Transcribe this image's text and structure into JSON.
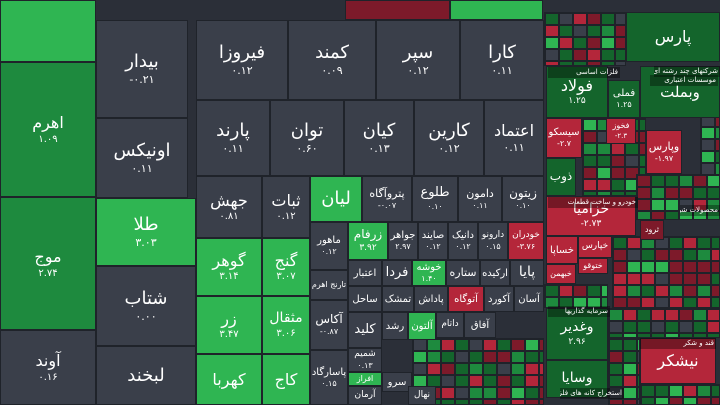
{
  "chart_data": {
    "type": "heatmap",
    "title": "",
    "colors": {
      "gray": "#3a3f4a",
      "green_bright": "#2fb552",
      "green": "#1e8a3e",
      "green_dark": "#14652c",
      "red": "#b4263a",
      "red_dark": "#7d1a2a",
      "border": "#1f232a"
    },
    "tiles": [
      {
        "name": "",
        "value": "",
        "color": "green_bright"
      },
      {
        "name": "",
        "value": "",
        "color": "red_dark"
      },
      {
        "name": "",
        "value": "",
        "color": "green_bright"
      },
      {
        "name": "اهرم",
        "value": "۱.۰۹",
        "color": "green"
      },
      {
        "name": "موج",
        "value": "۲.۷۴",
        "color": "green"
      },
      {
        "name": "آوند",
        "value": "۰.۱۶",
        "color": "gray"
      },
      {
        "name": "بیدار",
        "value": "-۰.۲۱",
        "color": "gray"
      },
      {
        "name": "اونیکس",
        "value": "۰.۱۱",
        "color": "gray"
      },
      {
        "name": "طلا",
        "value": "۳.۰۳",
        "color": "green_bright"
      },
      {
        "name": "شتاب",
        "value": "۰.۰۰",
        "color": "gray"
      },
      {
        "name": "لبخند",
        "value": "",
        "color": "gray"
      },
      {
        "name": "فیروزا",
        "value": "۰.۱۲",
        "color": "gray"
      },
      {
        "name": "کمند",
        "value": "۰.۰۹",
        "color": "gray"
      },
      {
        "name": "سپر",
        "value": "۰.۱۲",
        "color": "gray"
      },
      {
        "name": "کارا",
        "value": "۰.۱۱",
        "color": "gray"
      },
      {
        "name": "پارند",
        "value": "۰.۱۱",
        "color": "gray"
      },
      {
        "name": "توان",
        "value": "۰.۶۰",
        "color": "gray"
      },
      {
        "name": "کیان",
        "value": "۰.۱۳",
        "color": "gray"
      },
      {
        "name": "کارین",
        "value": "۰.۱۲",
        "color": "gray"
      },
      {
        "name": "اعتماد",
        "value": "۰.۱۱",
        "color": "gray"
      },
      {
        "name": "جهش",
        "value": "۰.۸۱",
        "color": "gray"
      },
      {
        "name": "ثبات",
        "value": "۰.۱۲",
        "color": "gray"
      },
      {
        "name": "لیان",
        "value": "",
        "color": "green_bright"
      },
      {
        "name": "پتروآگاه",
        "value": "-۰.۰۷",
        "color": "gray"
      },
      {
        "name": "طلوع",
        "value": "۰.۱۰",
        "color": "gray"
      },
      {
        "name": "دامون",
        "value": "۰.۱۱",
        "color": "gray"
      },
      {
        "name": "زیتون",
        "value": "۰.۱۰",
        "color": "gray"
      },
      {
        "name": "گوهر",
        "value": "۳.۱۴",
        "color": "green_bright"
      },
      {
        "name": "گنج",
        "value": "۳.۰۷",
        "color": "green_bright"
      },
      {
        "name": "ماهور",
        "value": "۰.۱۲",
        "color": "gray"
      },
      {
        "name": "زرفام",
        "value": "۳.۹۲",
        "color": "green_bright"
      },
      {
        "name": "جواهر",
        "value": "۲.۹۷",
        "color": "gray"
      },
      {
        "name": "صایند",
        "value": "۰.۱۲",
        "color": "gray"
      },
      {
        "name": "دانیک",
        "value": "۰.۱۲",
        "color": "gray"
      },
      {
        "name": "دارونو",
        "value": "۰.۱۵",
        "color": "gray"
      },
      {
        "name": "خودران",
        "value": "-۳.۷۶",
        "color": "red"
      },
      {
        "name": "زر",
        "value": "۳.۴۷",
        "color": "green_bright"
      },
      {
        "name": "مثقال",
        "value": "۳.۰۶",
        "color": "green_bright"
      },
      {
        "name": "تارنج اهرم",
        "value": "",
        "color": "gray"
      },
      {
        "name": "اعتبار",
        "value": "",
        "color": "gray"
      },
      {
        "name": "فردا",
        "value": "",
        "color": "gray"
      },
      {
        "name": "خوشه",
        "value": "۱.۴۰",
        "color": "green_bright"
      },
      {
        "name": "ستاره",
        "value": "",
        "color": "gray"
      },
      {
        "name": "ارکیده",
        "value": "",
        "color": "gray"
      },
      {
        "name": "پایا",
        "value": "",
        "color": "gray"
      },
      {
        "name": "ساحل",
        "value": "",
        "color": "gray"
      },
      {
        "name": "تمشک",
        "value": "",
        "color": "gray"
      },
      {
        "name": "پاداش",
        "value": "",
        "color": "gray"
      },
      {
        "name": "آتوگاه",
        "value": "",
        "color": "red"
      },
      {
        "name": "آکورد",
        "value": "",
        "color": "gray"
      },
      {
        "name": "آسان",
        "value": "",
        "color": "gray"
      },
      {
        "name": "کهربا",
        "value": "",
        "color": "green_bright"
      },
      {
        "name": "کاج",
        "value": "",
        "color": "green_bright"
      },
      {
        "name": "آکاس",
        "value": "-۰.۸۷",
        "color": "gray"
      },
      {
        "name": "کلید",
        "value": "",
        "color": "gray"
      },
      {
        "name": "رشد",
        "value": "",
        "color": "gray"
      },
      {
        "name": "آلتون",
        "value": "",
        "color": "green_bright"
      },
      {
        "name": "داتام",
        "value": "",
        "color": "gray"
      },
      {
        "name": "آفاق",
        "value": "",
        "color": "gray"
      },
      {
        "name": "پاسارگاد",
        "value": "۰.۱۵",
        "color": "gray"
      },
      {
        "name": "شمیم",
        "value": "۰.۱۳",
        "color": "gray"
      },
      {
        "name": "افراز",
        "value": "",
        "color": "green_bright"
      },
      {
        "name": "سرو",
        "value": "",
        "color": "gray"
      },
      {
        "name": "آرمان",
        "value": "",
        "color": "gray"
      },
      {
        "name": "نهال",
        "value": "",
        "color": "gray"
      },
      {
        "name": "پارس",
        "value": "",
        "color": "green_dark"
      },
      {
        "name": "فولاد",
        "value": "۱.۲۵",
        "color": "green_dark"
      },
      {
        "name": "فملی",
        "value": "۱.۲۵",
        "color": "green_dark"
      },
      {
        "name": "وبملت",
        "value": "",
        "color": "green_dark"
      },
      {
        "name": "سیسکو",
        "value": "-۲.۷",
        "color": "red"
      },
      {
        "name": "فخوز",
        "value": "-۲.۳",
        "color": "red"
      },
      {
        "name": "وپارس",
        "value": "-۱.۹۷",
        "color": "red"
      },
      {
        "name": "ذوب",
        "value": "",
        "color": "green_dark"
      },
      {
        "name": "خزامیا",
        "value": "-۲.۷۳",
        "color": "red"
      },
      {
        "name": "خساپا",
        "value": "",
        "color": "red"
      },
      {
        "name": "خپارس",
        "value": "",
        "color": "red"
      },
      {
        "name": "ختوقو",
        "value": "",
        "color": "red"
      },
      {
        "name": "خبهمن",
        "value": "",
        "color": "red"
      },
      {
        "name": "ثرود",
        "value": "",
        "color": "red_dark"
      },
      {
        "name": "وغدیر",
        "value": "۲.۹۶",
        "color": "green_dark"
      },
      {
        "name": "وسایا",
        "value": "",
        "color": "green_dark"
      },
      {
        "name": "نیشکر",
        "value": "",
        "color": "red"
      }
    ],
    "sectors": [
      {
        "label": "فلزات اساسی"
      },
      {
        "label": "شرکتهای چند رشته ای صنعتی"
      },
      {
        "label": "موسسات اعتباری"
      },
      {
        "label": "خودرو و ساخت قطعات"
      },
      {
        "label": "محصولات شیمیایی"
      },
      {
        "label": "سرمایه گذاریها"
      },
      {
        "label": "قند و شکر"
      },
      {
        "label": "استخراج کانه های فلزی"
      }
    ]
  }
}
